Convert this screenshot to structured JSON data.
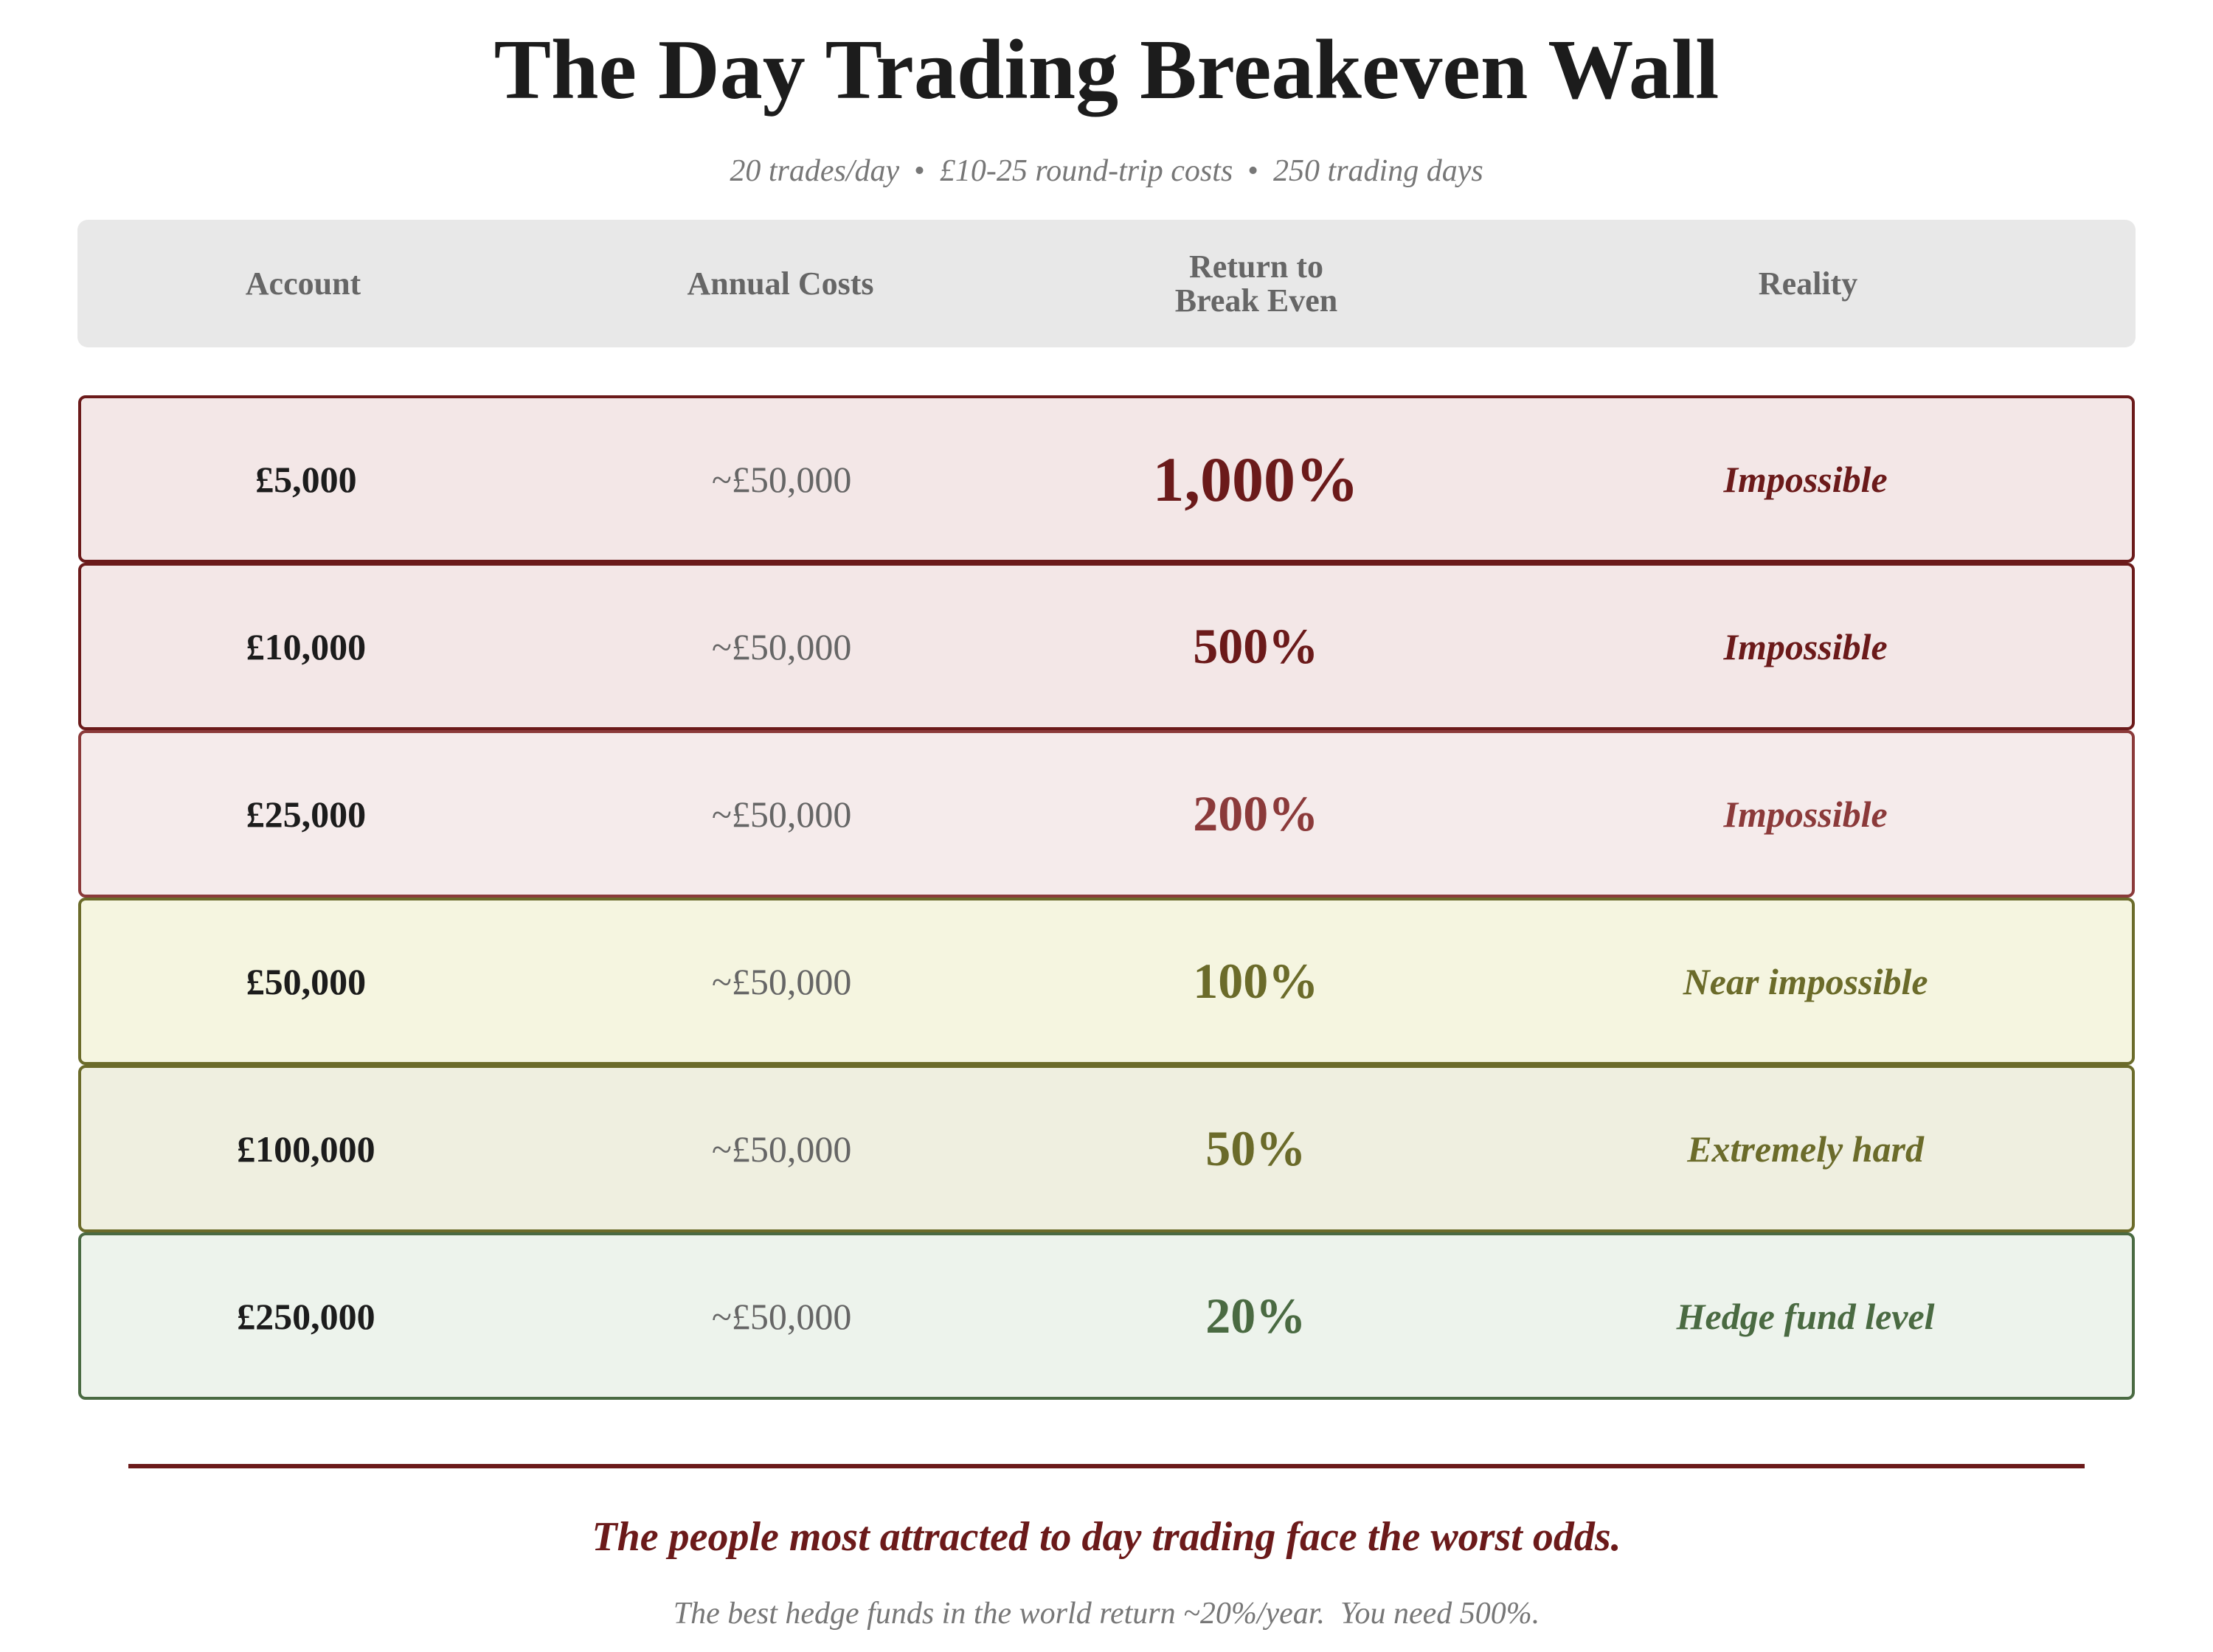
{
  "title": "The Day Trading Breakeven Wall",
  "subtitle": {
    "items": [
      "20 trades/day",
      "£10-25 round-trip costs",
      "250 trading days"
    ],
    "separator": "•"
  },
  "table": {
    "headers": [
      "Account",
      "Annual Costs",
      "Return to\nBreak Even",
      "Reality"
    ],
    "header_lines": {
      "return_line1": "Return to",
      "return_line2": "Break Even"
    },
    "rows": [
      {
        "account": "£5,000",
        "cost": "~£50,000",
        "return": "1,000%",
        "reality": "Impossible",
        "color": "#6b1a1a",
        "bg": "#f3e7e7"
      },
      {
        "account": "£10,000",
        "cost": "~£50,000",
        "return": "500%",
        "reality": "Impossible",
        "color": "#6b1a1a",
        "bg": "#f3e7e7"
      },
      {
        "account": "£25,000",
        "cost": "~£50,000",
        "return": "200%",
        "reality": "Impossible",
        "color": "#8b3a3a",
        "bg": "#f5ebeb"
      },
      {
        "account": "£50,000",
        "cost": "~£50,000",
        "return": "100%",
        "reality": "Near impossible",
        "color": "#6b6b2a",
        "bg": "#f5f5e0"
      },
      {
        "account": "£100,000",
        "cost": "~£50,000",
        "return": "50%",
        "reality": "Extremely hard",
        "color": "#6b6b2a",
        "bg": "#efefe0"
      },
      {
        "account": "£250,000",
        "cost": "~£50,000",
        "return": "20%",
        "reality": "Hedge fund level",
        "color": "#4a6a42",
        "bg": "#edf3ec"
      }
    ]
  },
  "quote": "The people most attracted to day trading face the worst odds.",
  "footnote": "The best hedge funds in the world return ~20%/year.  You need 500%."
}
